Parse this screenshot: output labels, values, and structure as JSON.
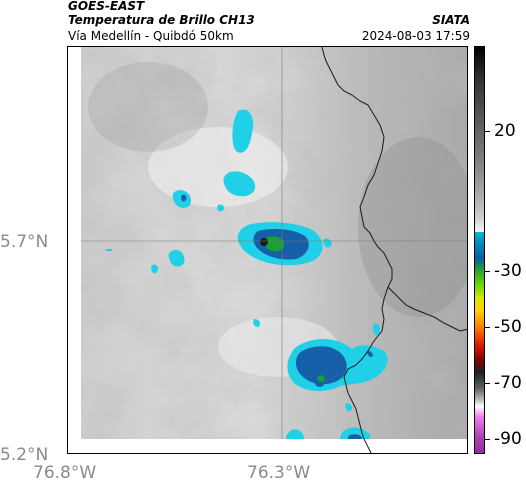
{
  "header": {
    "agency": "GOES-EAST",
    "product": "Temperatura de Brillo CH13",
    "region": "Vía Medellín - Quibdó 50km",
    "organization": "SIATA",
    "timestamp": "2024-08-03 17:59"
  },
  "map": {
    "latitude_labels": [
      "5.7°N",
      "5.2°N"
    ],
    "longitude_labels": [
      "76.8°W",
      "76.3°W"
    ],
    "colors": {
      "cold_cloud": "#1fd0e6",
      "deep_convection": "#1560a8",
      "core": "#18a030",
      "border_line": "#1a1a1a"
    }
  },
  "colorbar": {
    "tick_labels": [
      "20",
      "-30",
      "-50",
      "-70",
      "-90"
    ],
    "tick_values": [
      20,
      -30,
      -50,
      -70,
      -90
    ],
    "range": [
      -95,
      50
    ]
  }
}
